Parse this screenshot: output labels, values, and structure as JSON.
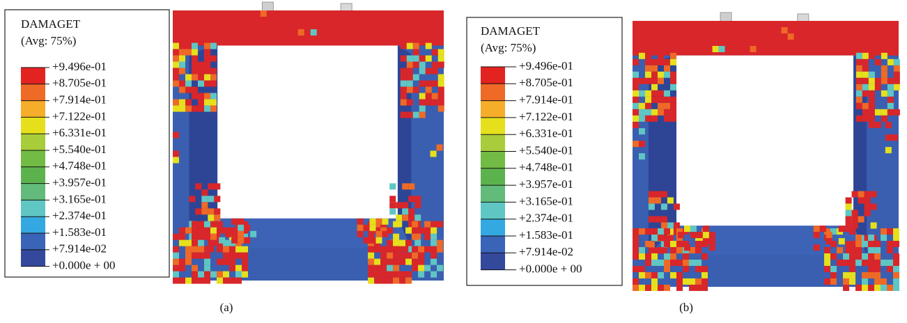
{
  "panels": [
    {
      "legend": {
        "title": "DAMAGET",
        "subtitle": "(Avg: 75%)",
        "labels": [
          "+9.496e-01",
          "+8.705e-01",
          "+7.914e-01",
          "+7.122e-01",
          "+6.331e-01",
          "+5.540e-01",
          "+4.748e-01",
          "+3.957e-01",
          "+3.165e-01",
          "+2.374e-01",
          "+1.583e-01",
          "+7.914e-02",
          "+0.000e + 00"
        ],
        "colors": [
          "#e3231f",
          "#ee6a26",
          "#f5ad2a",
          "#e6e01c",
          "#a8cc3a",
          "#72bb45",
          "#5cb34d",
          "#62bb7a",
          "#5fc6c3",
          "#34a8e0",
          "#3a64b8",
          "#34489c"
        ]
      },
      "caption": "(a)"
    },
    {
      "legend": {
        "title": "DAMAGET",
        "subtitle": "(Avg: 75%)",
        "labels": [
          "+9.496e-01",
          "+8.705e-01",
          "+7.914e-01",
          "+7.122e-01",
          "+6.331e-01",
          "+5.540e-01",
          "+4.748e-01",
          "+3.957e-01",
          "+3.165e-01",
          "+2.374e-01",
          "+1.583e-01",
          "+7.914e-02",
          "+0.000e + 00"
        ],
        "colors": [
          "#e3231f",
          "#ee6a26",
          "#f5ad2a",
          "#e6e01c",
          "#a8cc3a",
          "#72bb45",
          "#5cb34d",
          "#62bb7a",
          "#5fc6c3",
          "#34a8e0",
          "#3a64b8",
          "#34489c"
        ]
      },
      "caption": "(b)"
    }
  ]
}
